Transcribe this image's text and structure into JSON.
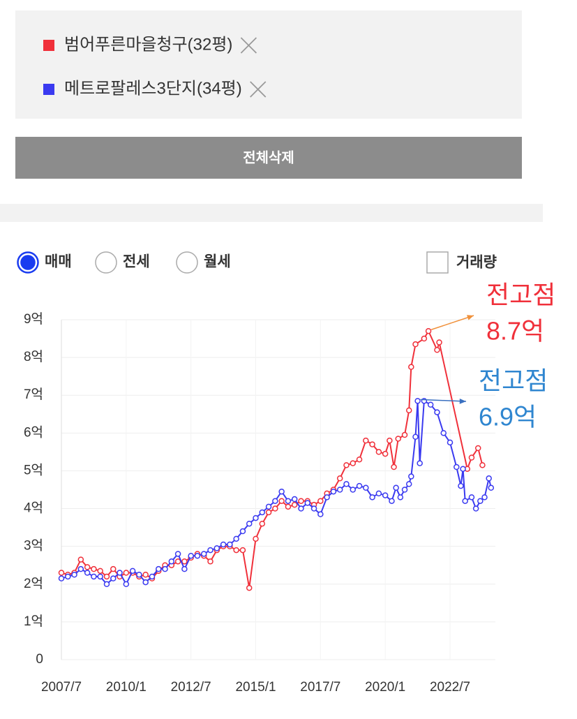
{
  "delete_all_button": "전체삭제",
  "trade_types": {
    "options": [
      "매매",
      "전세",
      "월세"
    ],
    "selected": 0
  },
  "volume_checkbox": {
    "label": "거래량",
    "checked": false
  },
  "chart_data": {
    "type": "line",
    "series": [
      {
        "name": "범어푸른마을청구(32평)",
        "color": "#f0303a",
        "x": [
          "2007/7",
          "2007/10",
          "2008/1",
          "2008/4",
          "2008/7",
          "2008/10",
          "2009/1",
          "2009/4",
          "2009/7",
          "2009/10",
          "2010/1",
          "2010/4",
          "2010/7",
          "2010/10",
          "2011/1",
          "2011/4",
          "2011/7",
          "2011/10",
          "2012/1",
          "2012/4",
          "2012/7",
          "2012/10",
          "2013/1",
          "2013/4",
          "2013/7",
          "2013/10",
          "2014/1",
          "2014/4",
          "2014/7",
          "2014/10",
          "2015/1",
          "2015/4",
          "2015/7",
          "2015/10",
          "2016/1",
          "2016/4",
          "2016/7",
          "2016/10",
          "2017/1",
          "2017/4",
          "2017/7",
          "2017/10",
          "2018/1",
          "2018/4",
          "2018/7",
          "2018/10",
          "2019/1",
          "2019/4",
          "2019/7",
          "2019/10",
          "2020/1",
          "2020/3",
          "2020/5",
          "2020/7",
          "2020/10",
          "2020/12",
          "2021/1",
          "2021/3",
          "2021/7",
          "2021/9",
          "2022/1",
          "2022/2",
          "2023/3",
          "2023/5",
          "2023/8",
          "2023/10"
        ],
        "values": [
          2.3,
          2.25,
          2.3,
          2.65,
          2.45,
          2.4,
          2.35,
          2.2,
          2.4,
          2.2,
          2.3,
          2.3,
          2.2,
          2.25,
          2.15,
          2.35,
          2.5,
          2.5,
          2.6,
          2.6,
          2.7,
          2.8,
          2.75,
          2.6,
          2.9,
          3.0,
          3.0,
          2.9,
          2.9,
          1.9,
          3.2,
          3.6,
          3.9,
          4.0,
          4.2,
          4.05,
          4.1,
          4.2,
          4.2,
          4.1,
          4.2,
          4.4,
          4.5,
          4.8,
          5.15,
          5.2,
          5.3,
          5.8,
          5.7,
          5.5,
          5.45,
          5.8,
          5.1,
          5.85,
          5.95,
          6.6,
          7.75,
          8.35,
          8.5,
          8.7,
          8.2,
          8.4,
          5.05,
          5.35,
          5.6,
          5.15
        ]
      },
      {
        "name": "메트로팔레스3단지(34평)",
        "color": "#3a3af0",
        "x": [
          "2007/7",
          "2007/10",
          "2008/1",
          "2008/4",
          "2008/7",
          "2008/10",
          "2009/1",
          "2009/4",
          "2009/7",
          "2009/10",
          "2010/1",
          "2010/4",
          "2010/7",
          "2010/10",
          "2011/1",
          "2011/4",
          "2011/7",
          "2011/10",
          "2012/1",
          "2012/4",
          "2012/7",
          "2012/10",
          "2013/1",
          "2013/4",
          "2013/7",
          "2013/10",
          "2014/1",
          "2014/4",
          "2014/7",
          "2014/10",
          "2015/1",
          "2015/4",
          "2015/7",
          "2015/10",
          "2016/1",
          "2016/4",
          "2016/7",
          "2016/10",
          "2017/1",
          "2017/4",
          "2017/7",
          "2017/10",
          "2018/1",
          "2018/4",
          "2018/7",
          "2018/10",
          "2019/1",
          "2019/4",
          "2019/7",
          "2019/10",
          "2020/1",
          "2020/4",
          "2020/6",
          "2020/8",
          "2020/10",
          "2020/12",
          "2021/1",
          "2021/3",
          "2021/4",
          "2021/5",
          "2021/7",
          "2021/10",
          "2022/1",
          "2022/4",
          "2022/7",
          "2022/10",
          "2022/12",
          "2023/1",
          "2023/2",
          "2023/5",
          "2023/7",
          "2023/9",
          "2023/11",
          "2024/1",
          "2024/2"
        ],
        "values": [
          2.15,
          2.2,
          2.25,
          2.4,
          2.3,
          2.2,
          2.2,
          2.0,
          2.15,
          2.3,
          2.0,
          2.35,
          2.25,
          2.05,
          2.2,
          2.4,
          2.4,
          2.6,
          2.8,
          2.4,
          2.75,
          2.75,
          2.8,
          2.9,
          2.95,
          3.05,
          3.05,
          3.2,
          3.4,
          3.6,
          3.75,
          3.9,
          4.05,
          4.2,
          4.45,
          4.2,
          4.25,
          4.0,
          4.15,
          4.0,
          3.85,
          4.3,
          4.45,
          4.5,
          4.65,
          4.5,
          4.6,
          4.55,
          4.3,
          4.4,
          4.35,
          4.2,
          4.55,
          4.3,
          4.5,
          4.65,
          4.85,
          5.9,
          6.85,
          5.2,
          6.85,
          6.75,
          6.55,
          6.0,
          5.75,
          5.1,
          4.6,
          5.05,
          4.2,
          4.3,
          4.0,
          4.2,
          4.3,
          4.8,
          4.55
        ]
      }
    ],
    "xlim": [
      "2007/7",
      "2024/4"
    ],
    "xticks": [
      "2007/7",
      "2010/1",
      "2012/7",
      "2015/1",
      "2017/7",
      "2020/1",
      "2022/7"
    ],
    "ylim": [
      0,
      9
    ],
    "yticks": [
      0,
      {
        "value": 1,
        "label": "1억"
      },
      {
        "value": 2,
        "label": "2억"
      },
      {
        "value": 3,
        "label": "3억"
      },
      {
        "value": 4,
        "label": "4억"
      },
      {
        "value": 5,
        "label": "5억"
      },
      {
        "value": 6,
        "label": "6억"
      },
      {
        "value": 7,
        "label": "7억"
      },
      {
        "value": 8,
        "label": "8억"
      },
      {
        "value": 9,
        "label": "9억"
      }
    ],
    "grid": true,
    "annotations": [
      {
        "lines": [
          "전고점",
          "8.7억"
        ],
        "color": "#f0303a"
      },
      {
        "lines": [
          "전고점",
          "6.9억"
        ],
        "color": "#2f86d0"
      }
    ]
  }
}
